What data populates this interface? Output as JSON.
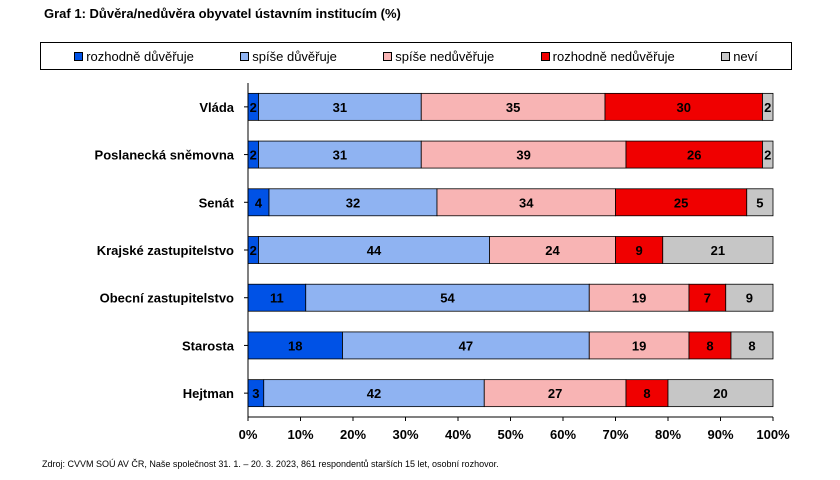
{
  "chart_data": {
    "type": "bar",
    "orientation": "horizontal",
    "stacked": true,
    "title": "Graf 1: Důvěra/nedůvěra obyvatel ústavním institucím (%)",
    "xlabel": "",
    "ylabel": "",
    "xlim": [
      0,
      100
    ],
    "x_ticks": [
      "0%",
      "10%",
      "20%",
      "30%",
      "40%",
      "50%",
      "60%",
      "70%",
      "80%",
      "90%",
      "100%"
    ],
    "legend_position": "top",
    "categories": [
      "Vláda",
      "Poslanecká sněmovna",
      "Senát",
      "Krajské zastupitelstvo",
      "Obecní zastupitelstvo",
      "Starosta",
      "Hejtman"
    ],
    "series": [
      {
        "name": "rozhodně důvěřuje",
        "color": "#0052e6",
        "values": [
          2,
          2,
          4,
          2,
          11,
          18,
          3
        ]
      },
      {
        "name": "spíše důvěřuje",
        "color": "#8fb3f2",
        "values": [
          31,
          31,
          32,
          44,
          54,
          47,
          42
        ]
      },
      {
        "name": "spíše nedůvěřuje",
        "color": "#f8b4b4",
        "values": [
          35,
          39,
          34,
          24,
          19,
          19,
          27
        ]
      },
      {
        "name": "rozhodně nedůvěřuje",
        "color": "#f00000",
        "values": [
          30,
          26,
          25,
          9,
          7,
          8,
          8
        ]
      },
      {
        "name": "neví",
        "color": "#c6c6c6",
        "values": [
          2,
          2,
          5,
          21,
          9,
          8,
          20
        ]
      }
    ]
  },
  "source": "Zdroj: CVVM SOÚ AV ČR, Naše společnost 31. 1. – 20. 3. 2023, 861 respondentů starších 15 let, osobní rozhovor."
}
